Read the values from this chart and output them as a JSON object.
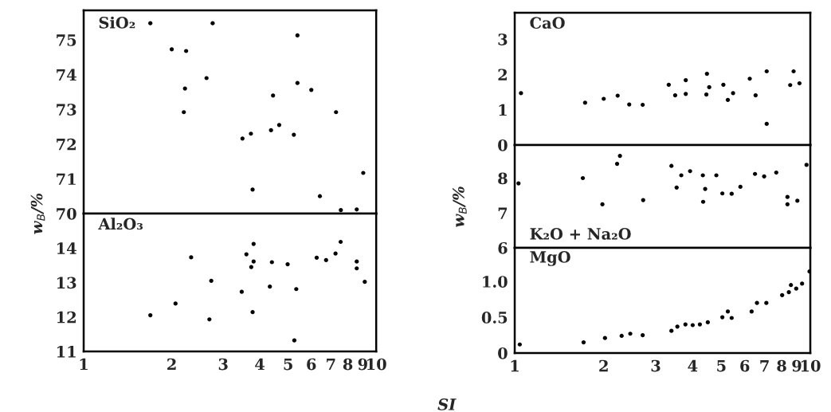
{
  "chart_data": [
    {
      "type": "scatter",
      "title": "SiO₂",
      "ylabel": "w$_{B}$/%",
      "log": "x",
      "xlim": [
        1,
        10
      ],
      "xticks": [
        1,
        2,
        3,
        4,
        5,
        6,
        7,
        8,
        9,
        10
      ],
      "ylim": [
        70,
        75.85
      ],
      "yticks": [
        70,
        71,
        72,
        73,
        74,
        75
      ],
      "tick_labels": "y",
      "grid": false,
      "marker": "circle",
      "series": [
        {
          "color": "#000000",
          "x": [
            1.69,
            2.0,
            2.24,
            2.22,
            2.2,
            2.63,
            2.76,
            3.49,
            3.73,
            3.78,
            4.37,
            4.44,
            4.66,
            5.23,
            5.38,
            5.38,
            6.0,
            6.42,
            7.29,
            7.57,
            8.58,
            9.03
          ],
          "values": [
            75.48,
            74.73,
            74.68,
            73.6,
            72.92,
            73.9,
            75.48,
            72.16,
            72.3,
            70.69,
            72.4,
            73.4,
            72.55,
            72.27,
            75.13,
            73.76,
            73.56,
            70.5,
            72.92,
            70.1,
            70.12,
            71.17
          ]
        }
      ]
    },
    {
      "type": "scatter",
      "title": "Al₂O₃",
      "log": "x",
      "xlim": [
        1,
        10
      ],
      "xticks": [
        1,
        2,
        3,
        4,
        5,
        6,
        7,
        8,
        9,
        10
      ],
      "ylim": [
        11,
        15
      ],
      "yticks": [
        11,
        12,
        13,
        14
      ],
      "grid": false,
      "marker": "circle",
      "series": [
        {
          "color": "#000000",
          "x": [
            1.69,
            2.06,
            2.33,
            2.69,
            2.73,
            3.47,
            3.6,
            3.74,
            3.81,
            3.81,
            3.78,
            4.33,
            4.4,
            4.98,
            5.25,
            5.33,
            6.26,
            6.74,
            7.26,
            7.56,
            8.58,
            8.58,
            9.14
          ],
          "values": [
            12.05,
            12.39,
            13.73,
            11.93,
            13.05,
            12.73,
            13.82,
            13.45,
            14.12,
            13.61,
            12.14,
            12.88,
            13.59,
            13.53,
            11.32,
            12.81,
            13.72,
            13.65,
            13.84,
            14.18,
            13.61,
            13.41,
            13.02
          ]
        }
      ]
    },
    {
      "type": "scatter",
      "title": "CaO",
      "log": "x",
      "xlim": [
        1,
        10
      ],
      "xticks": [
        1,
        2,
        3,
        4,
        5,
        6,
        7,
        8,
        9,
        10
      ],
      "ylim": [
        0,
        3.75
      ],
      "yticks": [
        0,
        1,
        2,
        3
      ],
      "tick_labels": "y",
      "grid": false,
      "marker": "circle",
      "series": [
        {
          "color": "#000000",
          "x": [
            1.05,
            1.73,
            2.0,
            2.23,
            2.44,
            2.71,
            3.32,
            3.49,
            3.79,
            3.79,
            4.47,
            4.45,
            4.55,
            5.08,
            5.26,
            5.48,
            6.24,
            6.53,
            7.12,
            7.12,
            8.55,
            8.78,
            9.19
          ],
          "values": [
            1.47,
            1.2,
            1.31,
            1.4,
            1.15,
            1.14,
            1.71,
            1.41,
            1.84,
            1.45,
            2.02,
            1.43,
            1.64,
            1.71,
            1.28,
            1.47,
            1.88,
            1.41,
            2.09,
            0.6,
            1.7,
            2.09,
            1.75
          ]
        }
      ]
    },
    {
      "type": "scatter",
      "title": "K₂O + Na₂O",
      "ylabel": "w$_{B}$/%",
      "log": "x",
      "xlim": [
        1,
        10
      ],
      "xticks": [
        1,
        2,
        3,
        4,
        5,
        6,
        7,
        8,
        9,
        10
      ],
      "ylim": [
        6,
        8.95
      ],
      "yticks": [
        6,
        7,
        8
      ],
      "tick_labels": "y",
      "grid": false,
      "marker": "circle",
      "series": [
        {
          "color": "#000000",
          "x": [
            1.03,
            1.7,
            1.98,
            2.22,
            2.27,
            2.72,
            3.39,
            3.53,
            3.66,
            3.92,
            4.33,
            4.34,
            4.41,
            4.81,
            5.04,
            5.42,
            5.8,
            6.5,
            6.98,
            7.67,
            8.37,
            8.37,
            9.04,
            9.71
          ],
          "values": [
            7.85,
            8.0,
            7.25,
            8.41,
            8.64,
            7.37,
            8.35,
            7.73,
            8.08,
            8.2,
            8.08,
            7.32,
            7.69,
            8.08,
            7.56,
            7.55,
            7.75,
            8.12,
            8.05,
            8.16,
            7.46,
            7.25,
            7.35,
            8.38
          ]
        }
      ]
    },
    {
      "type": "scatter",
      "title": "MgO",
      "xlabel": "SI",
      "log": "x",
      "xlim": [
        1,
        10
      ],
      "xticks": [
        1,
        2,
        3,
        4,
        5,
        6,
        7,
        8,
        9,
        10
      ],
      "ylim": [
        0,
        1.47
      ],
      "yticks": [
        0,
        0.5,
        {
          "value": 1,
          "label": "1.0"
        }
      ],
      "grid": false,
      "marker": "circle",
      "series": [
        {
          "color": "#000000",
          "x": [
            1.04,
            1.71,
            2.02,
            2.3,
            2.46,
            2.71,
            3.39,
            3.55,
            3.78,
            4.0,
            4.23,
            4.5,
            5.04,
            5.26,
            5.42,
            6.33,
            6.6,
            7.1,
            8.03,
            8.46,
            8.6,
            8.96,
            9.38,
            9.94
          ],
          "values": [
            0.12,
            0.15,
            0.21,
            0.24,
            0.27,
            0.25,
            0.31,
            0.37,
            0.4,
            0.39,
            0.4,
            0.43,
            0.5,
            0.58,
            0.49,
            0.58,
            0.7,
            0.7,
            0.81,
            0.85,
            0.95,
            0.9,
            0.97,
            1.14
          ]
        }
      ]
    }
  ]
}
